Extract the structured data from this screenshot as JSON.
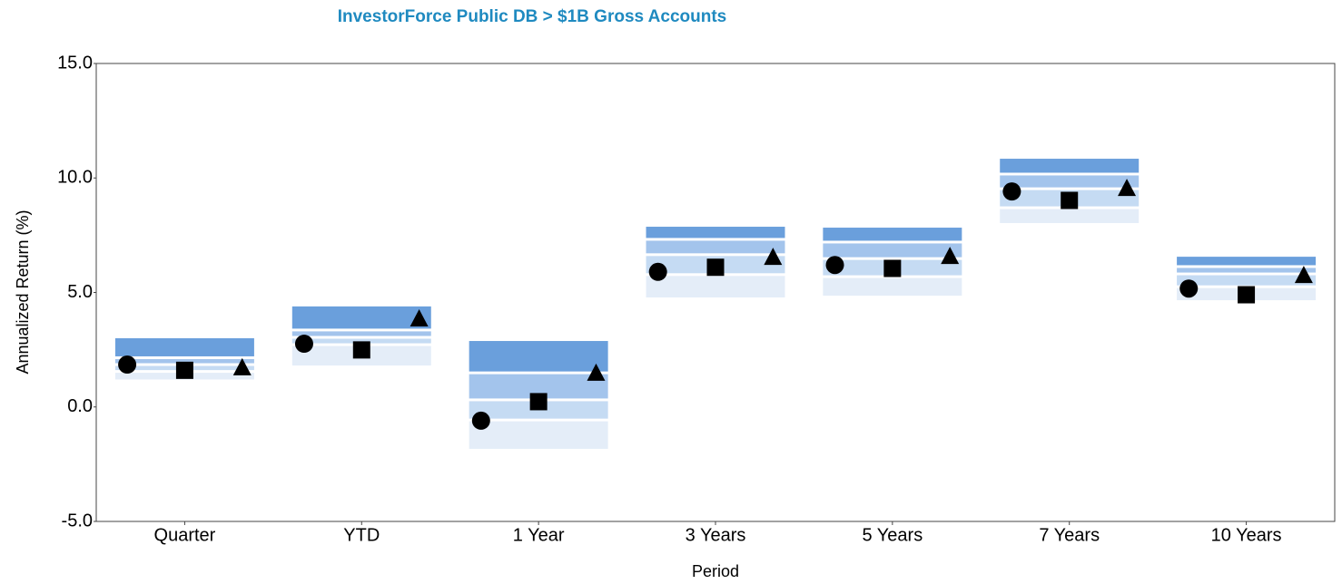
{
  "chart_data": {
    "type": "floating_range",
    "title": "InvestorForce Public DB > $1B Gross Accounts",
    "y_label": "Annualized Return (%)",
    "x_label": "Period",
    "categories": [
      "Quarter",
      "YTD",
      "1 Year",
      "3 Years",
      "5 Years",
      "7 Years",
      "10 Years"
    ],
    "ranges": [
      [
        3.0,
        2.15,
        1.85,
        1.55,
        1.2
      ],
      [
        4.39,
        3.36,
        3.04,
        2.72,
        1.81
      ],
      [
        2.88,
        1.49,
        0.31,
        -0.57,
        -1.83
      ],
      [
        7.87,
        7.32,
        6.65,
        5.78,
        4.78
      ],
      [
        7.83,
        7.2,
        6.48,
        5.69,
        4.86
      ],
      [
        10.84,
        10.17,
        9.53,
        8.7,
        8.03
      ],
      [
        6.56,
        6.13,
        5.81,
        5.25,
        4.66
      ]
    ],
    "range_colors": [
      "#6a9fdc",
      "#a3c4ec",
      "#c5dbf3",
      "#e4edf8"
    ],
    "series": [
      {
        "marker": "circle",
        "color": "#000000",
        "values": [
          1.85,
          2.76,
          -0.6,
          5.9,
          6.2,
          9.41,
          5.17
        ]
      },
      {
        "marker": "square",
        "color": "#000000",
        "values": [
          1.6,
          2.49,
          0.23,
          6.1,
          6.05,
          9.02,
          4.9
        ]
      },
      {
        "marker": "triangle",
        "color": "#000000",
        "values": [
          1.7,
          3.83,
          1.46,
          6.52,
          6.56,
          9.53,
          5.73
        ]
      }
    ],
    "ylim": [
      -5,
      15
    ],
    "yticks": [
      {
        "value": -5,
        "label": "-5.0"
      },
      {
        "value": 0,
        "label": "0.0"
      },
      {
        "value": 5,
        "label": "5.0"
      },
      {
        "value": 10,
        "label": "10.0"
      },
      {
        "value": 15,
        "label": "15.0"
      }
    ],
    "grid": false
  }
}
